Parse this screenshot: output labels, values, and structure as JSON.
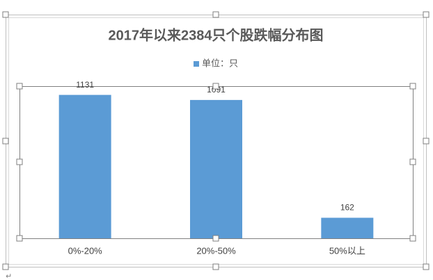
{
  "chart_data": {
    "type": "bar",
    "title": "2017年以来2384只个股跌幅分布图",
    "categories": [
      "0%-20%",
      "20%-50%",
      "50%以上"
    ],
    "series": [
      {
        "name": "单位：只",
        "color": "#5b9bd5",
        "values": [
          1131,
          1091,
          162
        ]
      }
    ],
    "ylim": [
      0,
      1200
    ],
    "legend": "top",
    "data_labels": true
  },
  "paragraph_mark": "↵"
}
